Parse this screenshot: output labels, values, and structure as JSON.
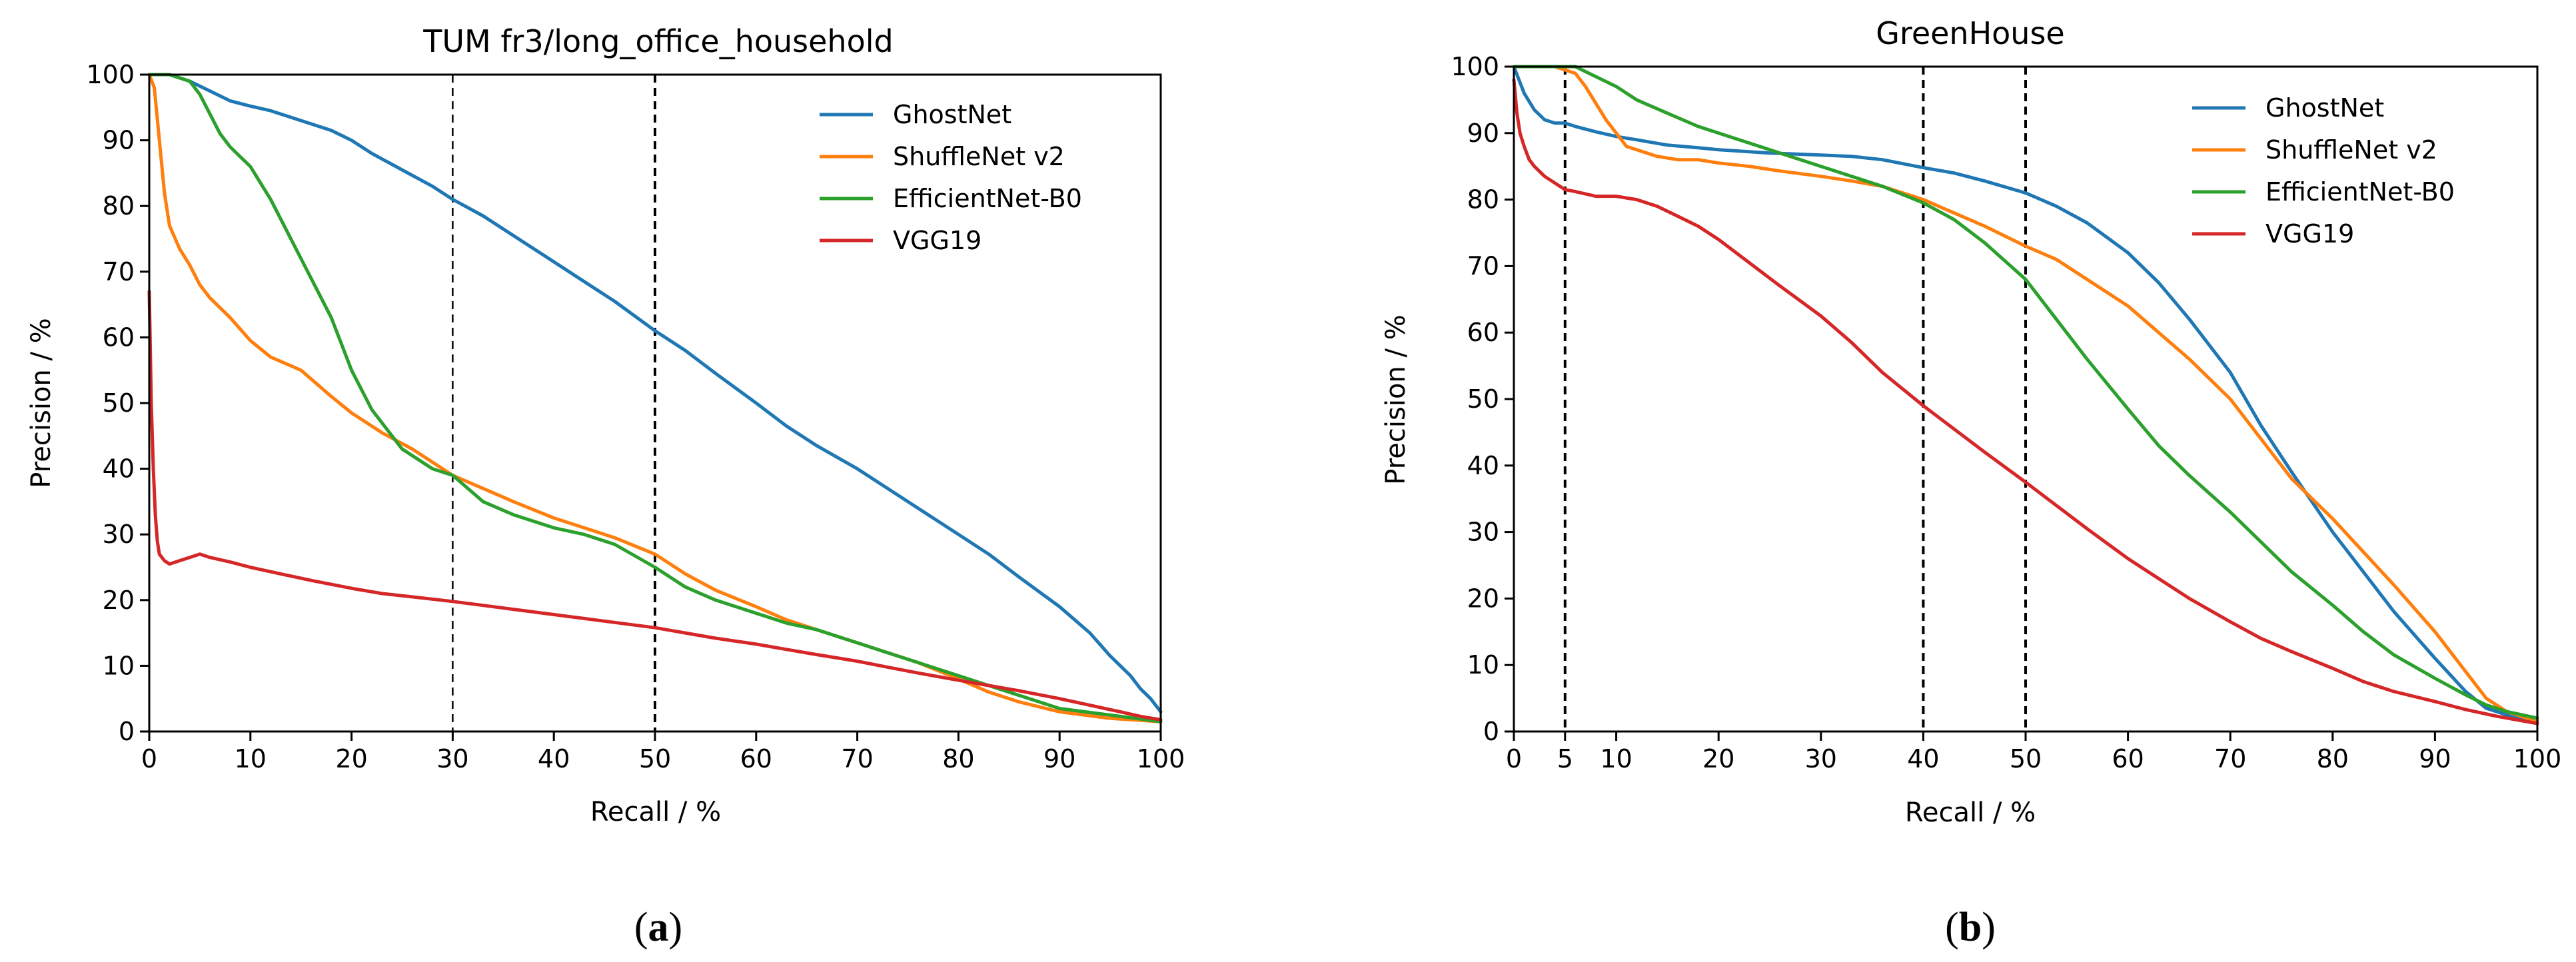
{
  "colors": {
    "GhostNet": "#1f77b4",
    "ShuffleNet v2": "#ff7f0e",
    "EfficientNet-B0": "#2ca02c",
    "VGG19": "#d62728"
  },
  "chart_data": [
    {
      "type": "line",
      "title": "TUM fr3/long_office_household",
      "xlabel": "Recall / %",
      "ylabel": "Precision / %",
      "xlim": [
        0,
        100
      ],
      "ylim": [
        0,
        100
      ],
      "xticks": [
        "0",
        "10",
        "20",
        "30",
        "40",
        "50",
        "60",
        "70",
        "80",
        "90",
        "100"
      ],
      "yticks": [
        "0",
        "10",
        "20",
        "30",
        "40",
        "50",
        "60",
        "70",
        "80",
        "90",
        "100"
      ],
      "vlines": [
        30,
        50
      ],
      "legend": "top-right",
      "panel_open": "(",
      "panel_letter": "a",
      "panel_close": ")",
      "series": [
        {
          "name": "GhostNet",
          "x": [
            0,
            2,
            4,
            6,
            8,
            10,
            12,
            15,
            18,
            20,
            22,
            25,
            28,
            30,
            33,
            36,
            40,
            43,
            46,
            50,
            53,
            56,
            60,
            63,
            66,
            70,
            73,
            76,
            80,
            83,
            86,
            90,
            93,
            95,
            97,
            98,
            99,
            99.5,
            100
          ],
          "y": [
            100,
            100,
            99,
            97.5,
            96,
            95.2,
            94.5,
            93,
            91.5,
            90,
            88,
            85.5,
            83,
            81,
            78.5,
            75.5,
            71.5,
            68.5,
            65.5,
            61,
            58,
            54.5,
            50,
            46.5,
            43.5,
            40,
            37,
            34,
            30,
            27,
            23.5,
            19,
            15,
            11.5,
            8.5,
            6.5,
            5,
            4,
            3
          ]
        },
        {
          "name": "ShuffleNet v2",
          "x": [
            0,
            0.5,
            1,
            1.5,
            2,
            3,
            4,
            5,
            6,
            8,
            10,
            12,
            15,
            18,
            20,
            23,
            26,
            30,
            33,
            36,
            40,
            43,
            46,
            50,
            53,
            56,
            60,
            63,
            66,
            70,
            73,
            76,
            80,
            83,
            86,
            90,
            95,
            100
          ],
          "y": [
            100,
            98,
            90,
            82,
            77,
            73.5,
            71,
            68,
            66,
            63,
            59.5,
            57,
            55,
            51,
            48.5,
            45.5,
            43,
            39,
            37,
            35,
            32.5,
            31,
            29.5,
            27,
            24,
            21.5,
            19,
            17,
            15.5,
            13.5,
            12,
            10.5,
            8,
            6,
            4.5,
            3,
            2,
            1.5
          ]
        },
        {
          "name": "EfficientNet-B0",
          "x": [
            0,
            2,
            4,
            5,
            6,
            7,
            8,
            9,
            10,
            12,
            15,
            18,
            20,
            22,
            25,
            28,
            30,
            33,
            36,
            40,
            43,
            46,
            50,
            53,
            56,
            60,
            63,
            66,
            70,
            73,
            76,
            80,
            83,
            86,
            90,
            95,
            100
          ],
          "y": [
            100,
            100,
            99,
            97,
            94,
            91,
            89,
            87.5,
            86,
            81,
            72,
            63,
            55,
            49,
            43,
            40,
            39,
            35,
            33,
            31,
            30,
            28.5,
            25,
            22,
            20,
            18,
            16.5,
            15.5,
            13.5,
            12,
            10.5,
            8.5,
            7,
            5.5,
            3.5,
            2.5,
            1.5
          ]
        },
        {
          "name": "VGG19",
          "x": [
            0,
            0.2,
            0.4,
            0.6,
            0.8,
            1,
            1.5,
            2,
            3,
            4,
            5,
            6,
            8,
            10,
            13,
            16,
            20,
            23,
            26,
            30,
            33,
            36,
            40,
            43,
            46,
            50,
            53,
            56,
            60,
            63,
            66,
            70,
            73,
            76,
            80,
            83,
            86,
            90,
            93,
            96,
            98,
            100
          ],
          "y": [
            67,
            50,
            40,
            33,
            29,
            27,
            26,
            25.5,
            26,
            26.5,
            27,
            26.5,
            25.8,
            25,
            24,
            23,
            21.8,
            21,
            20.5,
            19.8,
            19.2,
            18.6,
            17.8,
            17.2,
            16.6,
            15.8,
            15,
            14.2,
            13.3,
            12.5,
            11.7,
            10.7,
            9.8,
            8.9,
            7.8,
            7,
            6.2,
            5,
            4,
            3,
            2.3,
            1.8
          ]
        }
      ]
    },
    {
      "type": "line",
      "title": "GreenHouse",
      "xlabel": "Recall / %",
      "ylabel": "Precision / %",
      "xlim": [
        0,
        100
      ],
      "ylim": [
        0,
        100
      ],
      "xticks": [
        "0",
        "5",
        "10",
        "20",
        "30",
        "40",
        "50",
        "60",
        "70",
        "80",
        "90",
        "100"
      ],
      "xtick_values": [
        0,
        5,
        10,
        20,
        30,
        40,
        50,
        60,
        70,
        80,
        90,
        100
      ],
      "yticks": [
        "0",
        "10",
        "20",
        "30",
        "40",
        "50",
        "60",
        "70",
        "80",
        "90",
        "100"
      ],
      "vlines": [
        5,
        40,
        50
      ],
      "legend": "top-right",
      "panel_open": "(",
      "panel_letter": "b",
      "panel_close": ")",
      "series": [
        {
          "name": "GhostNet",
          "x": [
            0,
            0.5,
            1,
            2,
            3,
            4,
            5,
            6,
            8,
            10,
            12,
            15,
            18,
            20,
            25,
            30,
            33,
            36,
            40,
            43,
            46,
            50,
            53,
            56,
            60,
            63,
            66,
            70,
            73,
            76,
            80,
            83,
            86,
            90,
            93,
            95,
            97,
            100
          ],
          "y": [
            100,
            98,
            96,
            93.5,
            92,
            91.5,
            91.5,
            91,
            90.2,
            89.5,
            89,
            88.2,
            87.8,
            87.5,
            87,
            86.7,
            86.5,
            86,
            84.8,
            84,
            82.8,
            81,
            79,
            76.5,
            72,
            67.5,
            62,
            54,
            46,
            39,
            30,
            24,
            18,
            11,
            6,
            3.5,
            2.5,
            1.5
          ]
        },
        {
          "name": "ShuffleNet v2",
          "x": [
            0,
            2,
            4,
            6,
            7,
            8,
            9,
            10,
            11,
            12,
            14,
            16,
            18,
            20,
            23,
            26,
            30,
            33,
            36,
            40,
            43,
            46,
            50,
            53,
            56,
            60,
            63,
            66,
            70,
            73,
            76,
            80,
            83,
            86,
            90,
            93,
            95,
            97,
            100
          ],
          "y": [
            100,
            100,
            100,
            99,
            97,
            94.5,
            92,
            90,
            88,
            87.5,
            86.5,
            86,
            86,
            85.5,
            85,
            84.3,
            83.5,
            82.8,
            82,
            80,
            78,
            76,
            73,
            71,
            68,
            64,
            60,
            56,
            50,
            44,
            38,
            32,
            27,
            22,
            15,
            9,
            5,
            3,
            1.5
          ]
        },
        {
          "name": "EfficientNet-B0",
          "x": [
            0,
            2,
            4,
            6,
            8,
            10,
            12,
            15,
            18,
            20,
            22,
            25,
            28,
            30,
            33,
            36,
            40,
            43,
            46,
            50,
            53,
            56,
            60,
            63,
            66,
            70,
            73,
            76,
            80,
            83,
            86,
            90,
            93,
            95,
            97,
            100
          ],
          "y": [
            100,
            100,
            100,
            100,
            98.5,
            97,
            95,
            93,
            91,
            90,
            89,
            87.5,
            86,
            85,
            83.5,
            82,
            79.5,
            77,
            73.5,
            68,
            62,
            56,
            48.5,
            43,
            38.5,
            33,
            28.5,
            24,
            19,
            15,
            11.5,
            8,
            5.5,
            4,
            3,
            2
          ]
        },
        {
          "name": "VGG19",
          "x": [
            0,
            0.3,
            0.6,
            1,
            1.5,
            2,
            3,
            4,
            5,
            6,
            8,
            10,
            12,
            14,
            16,
            18,
            20,
            23,
            26,
            30,
            33,
            36,
            40,
            43,
            46,
            50,
            53,
            56,
            60,
            63,
            66,
            70,
            73,
            76,
            80,
            83,
            86,
            90,
            93,
            96,
            100
          ],
          "y": [
            98,
            93,
            90,
            88,
            86,
            85,
            83.5,
            82.5,
            81.5,
            81.2,
            80.5,
            80.5,
            80,
            79,
            77.5,
            76,
            74,
            70.5,
            67,
            62.5,
            58.5,
            54,
            49,
            45.5,
            42,
            37.5,
            34,
            30.5,
            26,
            23,
            20,
            16.5,
            14,
            12,
            9.5,
            7.5,
            6,
            4.5,
            3.3,
            2.3,
            1.2
          ]
        }
      ]
    }
  ]
}
